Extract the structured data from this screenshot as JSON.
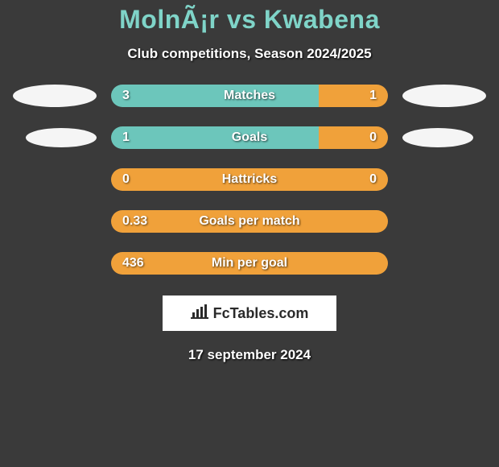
{
  "title": "MolnÃ¡r vs Kwabena",
  "subtitle": "Club competitions, Season 2024/2025",
  "date": "17 september 2024",
  "logo_text": "FcTables.com",
  "colors": {
    "teal": "#6cc6bb",
    "orange": "#f0a13a",
    "bg": "#3a3a3a",
    "oval": "#f5f5f5",
    "white": "#ffffff"
  },
  "stats": [
    {
      "label": "Matches",
      "left_val": "3",
      "right_val": "1",
      "left_color": "#6cc6bb",
      "right_color": "#f0a13a",
      "left_pct": 75,
      "right_pct": 25,
      "show_ovals": true,
      "oval_size": "big"
    },
    {
      "label": "Goals",
      "left_val": "1",
      "right_val": "0",
      "left_color": "#6cc6bb",
      "right_color": "#f0a13a",
      "left_pct": 75,
      "right_pct": 25,
      "show_ovals": true,
      "oval_size": "small"
    },
    {
      "label": "Hattricks",
      "left_val": "0",
      "right_val": "0",
      "left_color": "#f0a13a",
      "right_color": "#f0a13a",
      "left_pct": 100,
      "right_pct": 0,
      "show_ovals": false
    },
    {
      "label": "Goals per match",
      "left_val": "0.33",
      "right_val": "",
      "left_color": "#f0a13a",
      "right_color": "#f0a13a",
      "left_pct": 100,
      "right_pct": 0,
      "show_ovals": false
    },
    {
      "label": "Min per goal",
      "left_val": "436",
      "right_val": "",
      "left_color": "#f0a13a",
      "right_color": "#f0a13a",
      "left_pct": 100,
      "right_pct": 0,
      "show_ovals": false
    }
  ]
}
